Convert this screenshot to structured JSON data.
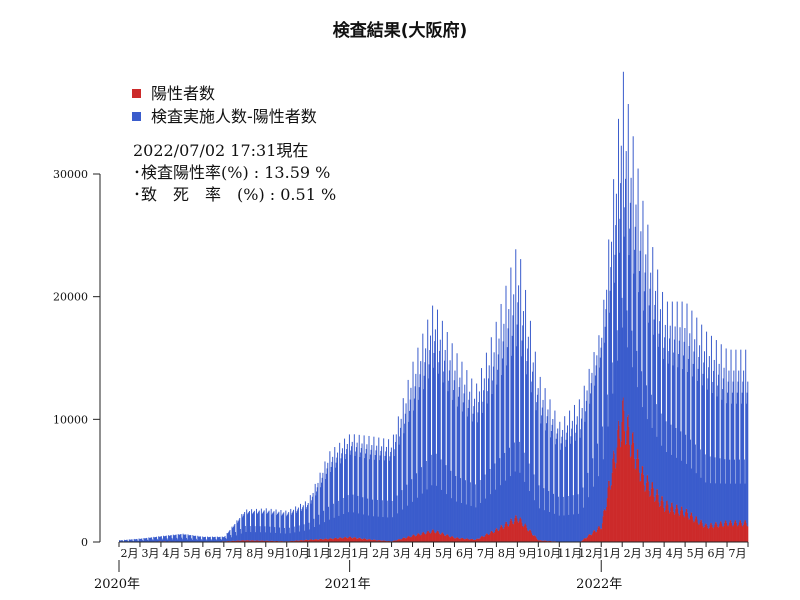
{
  "chart_data": {
    "type": "bar",
    "title": "検査結果(大阪府)",
    "stacked": true,
    "series": [
      {
        "name": "陽性者数",
        "color": "#cc2a2a"
      },
      {
        "name": "検査実施人数-陽性者数",
        "color": "#3a5ccc"
      }
    ],
    "ylim": [
      0,
      32000
    ],
    "yticks": [
      0,
      10000,
      20000,
      30000
    ],
    "month_labels": [
      "2月",
      "3月",
      "4月",
      "5月",
      "6月",
      "7月",
      "8月",
      "9月",
      "10月",
      "11月",
      "12月",
      "1月",
      "2月",
      "3月",
      "4月",
      "5月",
      "6月",
      "7月",
      "8月",
      "9月",
      "10月",
      "11月",
      "12月",
      "1月",
      "2月",
      "3月",
      "4月",
      "5月",
      "6月",
      "7月"
    ],
    "year_labels": [
      {
        "label": "2020年",
        "month_index": 0
      },
      {
        "label": "2021年",
        "month_index": 11
      },
      {
        "label": "2022年",
        "month_index": 23
      }
    ],
    "monthly_positive": [
      5,
      20,
      60,
      40,
      10,
      60,
      150,
      110,
      60,
      200,
      300,
      450,
      220,
      60,
      600,
      1050,
      400,
      220,
      1150,
      2300,
      150,
      30,
      40,
      1500,
      12000,
      6000,
      3500,
      2800,
      1500,
      1800
    ],
    "monthly_negative": [
      100,
      200,
      400,
      550,
      350,
      350,
      2000,
      2000,
      1800,
      2300,
      4500,
      6000,
      5500,
      5500,
      8000,
      11000,
      8500,
      7500,
      9500,
      11000,
      7500,
      6000,
      6500,
      13000,
      17000,
      13500,
      11500,
      10500,
      9500,
      8500
    ],
    "monthly_peak_total": [
      150,
      300,
      500,
      700,
      450,
      450,
      2700,
      2800,
      2600,
      3500,
      7500,
      9000,
      8800,
      8500,
      15000,
      20000,
      16000,
      13000,
      18500,
      25000,
      14000,
      10000,
      12000,
      18000,
      39500,
      28000,
      20000,
      20000,
      17500,
      16000
    ]
  },
  "legend": {
    "items": [
      {
        "label": "陽性者数",
        "color": "#cc2a2a"
      },
      {
        "label": "検査実施人数-陽性者数",
        "color": "#3a5ccc"
      }
    ]
  },
  "notes": {
    "timestamp": "2022/07/02 17:31現在",
    "positivity_rate": "･検査陽性率(%) : 13.59 %",
    "fatality_rate": "･致　死　率　(%) : 0.51 %"
  }
}
